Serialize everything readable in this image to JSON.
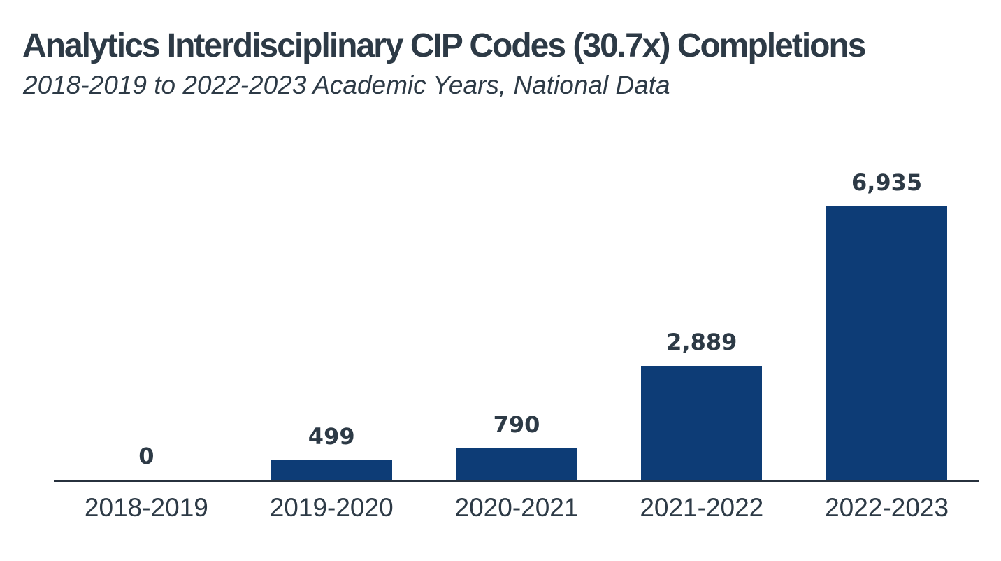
{
  "page": {
    "title": "Analytics Interdisciplinary CIP Codes (30.7x) Completions",
    "subtitle": "2018-2019 to 2022-2023 Academic Years, National Data"
  },
  "chart_data": {
    "type": "bar",
    "title": "Analytics Interdisciplinary CIP Codes (30.7x) Completions",
    "subtitle": "2018-2019 to 2022-2023 Academic Years, National Data",
    "categories": [
      "2018-2019",
      "2019-2020",
      "2020-2021",
      "2021-2022",
      "2022-2023"
    ],
    "values": [
      0,
      499,
      790,
      2889,
      6935
    ],
    "value_labels": [
      "0",
      "499",
      "790",
      "2,889",
      "6,935"
    ],
    "xlabel": "",
    "ylabel": "",
    "ylim": [
      0,
      6935
    ],
    "grid": false,
    "legend": false,
    "data_labels": true,
    "colors": {
      "bar": "#0d3c76",
      "text": "#2d3a46",
      "axis": "#27313d"
    }
  }
}
